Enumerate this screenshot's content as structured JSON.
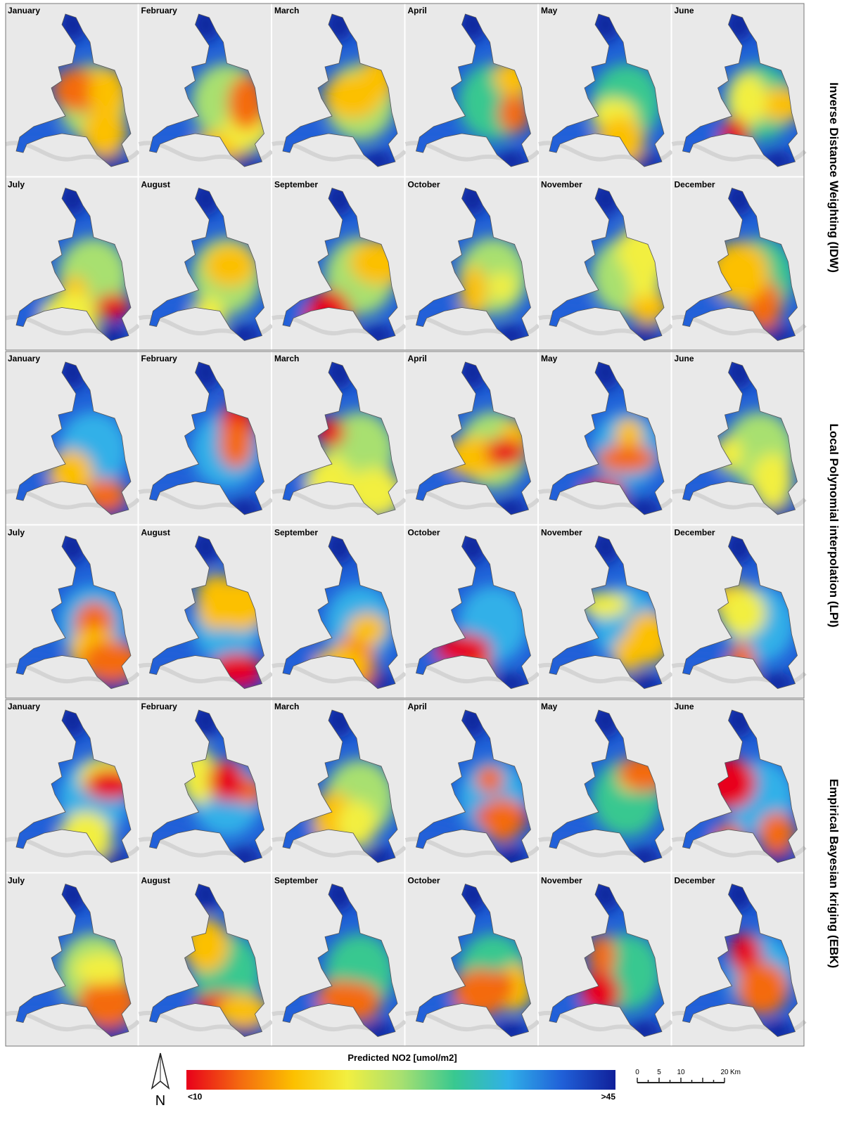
{
  "methods": [
    {
      "label": "Inverse Distance Weighting (IDW)",
      "months": [
        "January",
        "February",
        "March",
        "April",
        "May",
        "June",
        "July",
        "August",
        "September",
        "October",
        "November",
        "December"
      ]
    },
    {
      "label": "Local Polynomial interpolation (LPI)",
      "months": [
        "January",
        "February",
        "March",
        "April",
        "May",
        "June",
        "July",
        "August",
        "September",
        "October",
        "November",
        "December"
      ]
    },
    {
      "label": "Empirical Bayesian kriging (EBK)",
      "months": [
        "January",
        "February",
        "March",
        "April",
        "May",
        "June",
        "July",
        "August",
        "September",
        "October",
        "November",
        "December"
      ]
    }
  ],
  "legend": {
    "title": "Predicted NO2 [umol/m2]",
    "min_label": "<10",
    "max_label": ">45",
    "colors": [
      "#e8001a",
      "#f46a10",
      "#fcc000",
      "#f2ef40",
      "#a8e070",
      "#38c890",
      "#30b0e8",
      "#2060d8",
      "#10209a"
    ]
  },
  "scale_bar": {
    "ticks": [
      "0",
      "5",
      "10",
      "20"
    ],
    "unit": "Km"
  },
  "north": "N"
}
